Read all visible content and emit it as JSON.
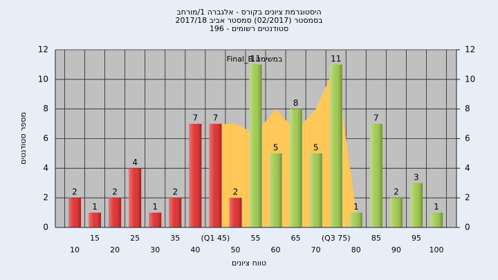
{
  "chart_data": {
    "type": "bar",
    "title": "היסטוגרמת ציונים בקורס - אלגברה 1/מורחב",
    "subtitle": "בסמסטר (02/2017) סמסטר אביב 2017/18",
    "subtitle2": "סטודנטים רשומים - 196",
    "ylabel": "מספר סטודנטים",
    "xlabel": "טווח ציונים",
    "categories": [
      "10",
      "15",
      "20",
      "25",
      "30",
      "35",
      "40",
      "(Q1 45)",
      "50",
      "55",
      "60",
      "65",
      "70",
      "(Q3 75)",
      "80",
      "85",
      "90",
      "95",
      "100"
    ],
    "values": [
      2,
      1,
      2,
      4,
      1,
      2,
      7,
      7,
      2,
      11,
      5,
      8,
      5,
      11,
      1,
      7,
      2,
      3,
      1
    ],
    "bar_colors": [
      "#e02a2a",
      "#e02a2a",
      "#e02a2a",
      "#e02a2a",
      "#e02a2a",
      "#e02a2a",
      "#e02a2a",
      "#e02a2a",
      "#e02a2a",
      "#9cc84a",
      "#9cc84a",
      "#9cc84a",
      "#9cc84a",
      "#9cc84a",
      "#9cc84a",
      "#9cc84a",
      "#9cc84a",
      "#9cc84a",
      "#9cc84a"
    ],
    "area": {
      "name": "Final_B במשימה",
      "color": "#ffc858",
      "values": [
        null,
        null,
        null,
        null,
        null,
        null,
        null,
        7,
        7,
        6.3,
        8,
        6.5,
        8,
        11,
        1,
        null,
        null,
        null,
        null
      ]
    },
    "ylim": [
      0,
      12
    ],
    "yticks": [
      0,
      2,
      4,
      6,
      8,
      10,
      12
    ],
    "y2lim": [
      0,
      12
    ],
    "y2ticks": [
      0,
      2,
      4,
      6,
      8,
      10,
      12
    ],
    "grid": true
  }
}
